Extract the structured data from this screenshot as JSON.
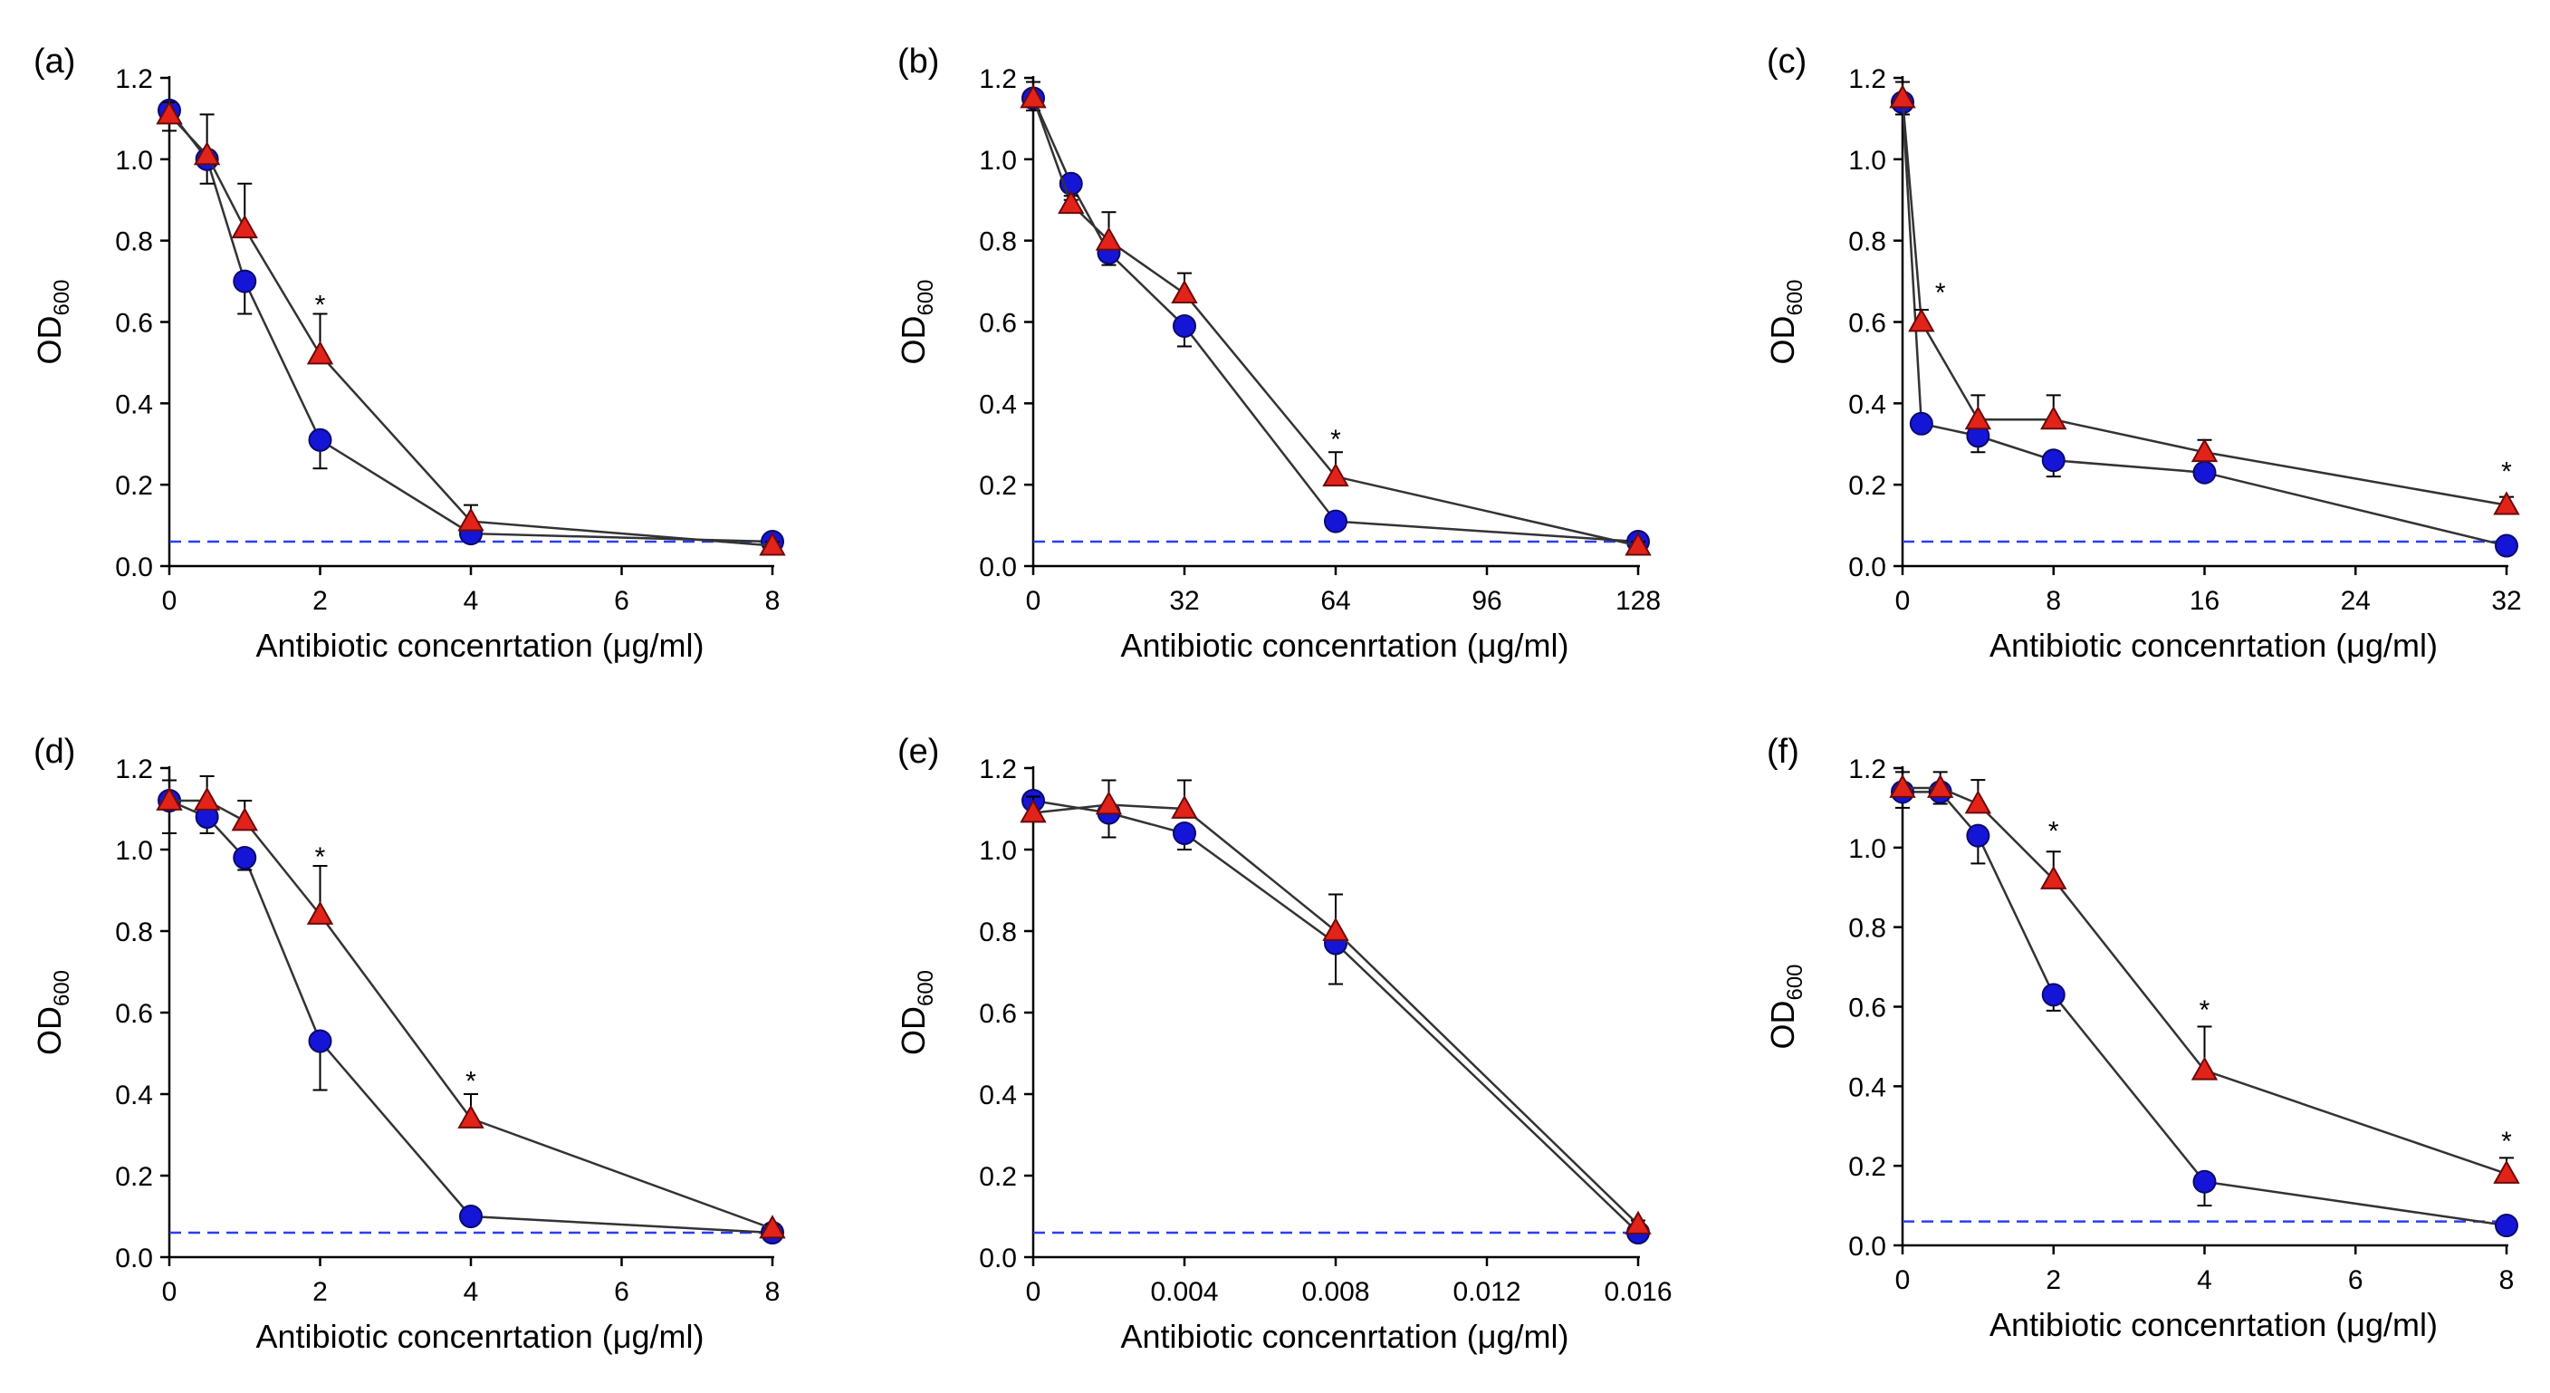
{
  "figure": {
    "type": "multi-panel line chart",
    "series_styles": [
      {
        "marker": "circle",
        "fill": "#1515d8",
        "stroke": "#0a0a6a"
      },
      {
        "marker": "triangle",
        "fill": "#e2231a",
        "stroke": "#6a0a0a"
      }
    ],
    "threshold_color": "#2b3ef0",
    "line_color": "#333333"
  },
  "chart_data": [
    {
      "id": "a",
      "type": "line",
      "panel_label": "(a)",
      "xlabel": "Antibiotic concenrtation (μg/ml)",
      "ylabel": "OD",
      "ylabel_sub": "600",
      "xlim": [
        0,
        8
      ],
      "ylim": [
        0,
        1.2
      ],
      "xticks": [
        0,
        2,
        4,
        6,
        8
      ],
      "xtick_labels": [
        "0",
        "2",
        "4",
        "6",
        "8"
      ],
      "yticks": [
        0,
        0.2,
        0.4,
        0.6,
        0.8,
        1.0,
        1.2
      ],
      "ytick_labels": [
        "0.0",
        "0.2",
        "0.4",
        "0.6",
        "0.8",
        "1.0",
        "1.2"
      ],
      "threshold": 0.06,
      "series": [
        {
          "name": "circle",
          "x": [
            0,
            0.5,
            1,
            2,
            4,
            8
          ],
          "y": [
            1.12,
            1.0,
            0.7,
            0.31,
            0.08,
            0.06
          ],
          "err": [
            0.05,
            0.06,
            0.08,
            0.07,
            0.02,
            0.01
          ]
        },
        {
          "name": "triangle",
          "x": [
            0,
            0.5,
            1,
            2,
            4,
            8
          ],
          "y": [
            1.11,
            1.01,
            0.83,
            0.52,
            0.11,
            0.05
          ],
          "err": [
            0.03,
            0.1,
            0.11,
            0.1,
            0.04,
            0.01
          ]
        }
      ],
      "annotations": [
        {
          "text": "*",
          "x": 2,
          "y": 0.66
        }
      ]
    },
    {
      "id": "b",
      "type": "line",
      "panel_label": "(b)",
      "xlabel": "Antibiotic concenrtation (μg/ml)",
      "ylabel": "OD",
      "ylabel_sub": "600",
      "xlim": [
        0,
        128
      ],
      "ylim": [
        0,
        1.2
      ],
      "xticks": [
        0,
        32,
        64,
        96,
        128
      ],
      "xtick_labels": [
        "0",
        "32",
        "64",
        "96",
        "128"
      ],
      "yticks": [
        0,
        0.2,
        0.4,
        0.6,
        0.8,
        1.0,
        1.2
      ],
      "ytick_labels": [
        "0.0",
        "0.2",
        "0.4",
        "0.6",
        "0.8",
        "1.0",
        "1.2"
      ],
      "threshold": 0.06,
      "series": [
        {
          "name": "circle",
          "x": [
            0,
            8,
            16,
            32,
            64,
            128
          ],
          "y": [
            1.15,
            0.94,
            0.77,
            0.59,
            0.11,
            0.06
          ],
          "err": [
            0.03,
            0.04,
            0.03,
            0.05,
            0.02,
            0.01
          ]
        },
        {
          "name": "triangle",
          "x": [
            0,
            8,
            16,
            32,
            64,
            128
          ],
          "y": [
            1.15,
            0.89,
            0.8,
            0.67,
            0.22,
            0.05
          ],
          "err": [
            0.04,
            0.02,
            0.07,
            0.05,
            0.06,
            0.01
          ]
        }
      ],
      "annotations": [
        {
          "text": "*",
          "x": 64,
          "y": 0.33
        }
      ]
    },
    {
      "id": "c",
      "type": "line",
      "panel_label": "(c)",
      "xlabel": "Antibiotic concenrtation (μg/ml)",
      "ylabel": "OD",
      "ylabel_sub": "600",
      "xlim": [
        0,
        32
      ],
      "ylim": [
        0,
        1.2
      ],
      "xticks": [
        0,
        8,
        16,
        24,
        32
      ],
      "xtick_labels": [
        "0",
        "8",
        "16",
        "24",
        "32"
      ],
      "yticks": [
        0,
        0.2,
        0.4,
        0.6,
        0.8,
        1.0,
        1.2
      ],
      "ytick_labels": [
        "0.0",
        "0.2",
        "0.4",
        "0.6",
        "0.8",
        "1.0",
        "1.2"
      ],
      "threshold": 0.06,
      "series": [
        {
          "name": "circle",
          "x": [
            0,
            1,
            4,
            8,
            16,
            32
          ],
          "y": [
            1.14,
            0.35,
            0.32,
            0.26,
            0.23,
            0.05
          ],
          "err": [
            0.03,
            0.02,
            0.04,
            0.04,
            0.02,
            0.01
          ]
        },
        {
          "name": "triangle",
          "x": [
            0,
            1,
            4,
            8,
            16,
            32
          ],
          "y": [
            1.15,
            0.6,
            0.36,
            0.36,
            0.28,
            0.15
          ],
          "err": [
            0.04,
            0.03,
            0.06,
            0.06,
            0.03,
            0.02
          ]
        }
      ],
      "annotations": [
        {
          "text": "*",
          "x": 2,
          "y": 0.69
        },
        {
          "text": "*",
          "x": 32,
          "y": 0.25
        }
      ]
    },
    {
      "id": "d",
      "type": "line",
      "panel_label": "(d)",
      "xlabel": "Antibiotic concenrtation (μg/ml)",
      "ylabel": "OD",
      "ylabel_sub": "600",
      "xlim": [
        0,
        8
      ],
      "ylim": [
        0,
        1.2
      ],
      "xticks": [
        0,
        2,
        4,
        6,
        8
      ],
      "xtick_labels": [
        "0",
        "2",
        "4",
        "6",
        "8"
      ],
      "yticks": [
        0,
        0.2,
        0.4,
        0.6,
        0.8,
        1.0,
        1.2
      ],
      "ytick_labels": [
        "0.0",
        "0.2",
        "0.4",
        "0.6",
        "0.8",
        "1.0",
        "1.2"
      ],
      "threshold": 0.06,
      "series": [
        {
          "name": "circle",
          "x": [
            0,
            0.5,
            1,
            2,
            4,
            8
          ],
          "y": [
            1.12,
            1.08,
            0.98,
            0.53,
            0.1,
            0.06
          ],
          "err": [
            0.08,
            0.04,
            0.03,
            0.12,
            0.02,
            0.01
          ]
        },
        {
          "name": "triangle",
          "x": [
            0,
            0.5,
            1,
            2,
            4,
            8
          ],
          "y": [
            1.12,
            1.12,
            1.07,
            0.84,
            0.34,
            0.07
          ],
          "err": [
            0.05,
            0.06,
            0.05,
            0.12,
            0.06,
            0.01
          ]
        }
      ],
      "annotations": [
        {
          "text": "*",
          "x": 2,
          "y": 1.0
        },
        {
          "text": "*",
          "x": 4,
          "y": 0.45
        }
      ]
    },
    {
      "id": "e",
      "type": "line",
      "panel_label": "(e)",
      "xlabel": "Antibiotic concenrtation (μg/ml)",
      "ylabel": "OD",
      "ylabel_sub": "600",
      "xlim": [
        0,
        0.016
      ],
      "ylim": [
        0,
        1.2
      ],
      "xticks": [
        0,
        0.004,
        0.008,
        0.012,
        0.016
      ],
      "xtick_labels": [
        "0",
        "0.004",
        "0.008",
        "0.012",
        "0.016"
      ],
      "yticks": [
        0,
        0.2,
        0.4,
        0.6,
        0.8,
        1.0,
        1.2
      ],
      "ytick_labels": [
        "0.0",
        "0.2",
        "0.4",
        "0.6",
        "0.8",
        "1.0",
        "1.2"
      ],
      "threshold": 0.06,
      "series": [
        {
          "name": "circle",
          "x": [
            0,
            0.002,
            0.004,
            0.008,
            0.016
          ],
          "y": [
            1.12,
            1.09,
            1.04,
            0.77,
            0.06
          ],
          "err": [
            0.03,
            0.06,
            0.04,
            0.1,
            0.01
          ]
        },
        {
          "name": "triangle",
          "x": [
            0,
            0.002,
            0.004,
            0.008,
            0.016
          ],
          "y": [
            1.09,
            1.11,
            1.1,
            0.8,
            0.08
          ],
          "err": [
            0.04,
            0.06,
            0.07,
            0.09,
            0.01
          ]
        }
      ],
      "annotations": []
    },
    {
      "id": "f",
      "type": "line",
      "panel_label": "(f)",
      "xlabel": "Antibiotic concenrtation (μg/ml)",
      "ylabel": "OD",
      "ylabel_sub": "600",
      "xlim": [
        0,
        8
      ],
      "ylim": [
        0,
        1.2
      ],
      "xticks": [
        0,
        2,
        4,
        6,
        8
      ],
      "xtick_labels": [
        "0",
        "2",
        "4",
        "6",
        "8"
      ],
      "yticks": [
        0,
        0.2,
        0.4,
        0.6,
        0.8,
        1.0,
        1.2
      ],
      "ytick_labels": [
        "0.0",
        "0.2",
        "0.4",
        "0.6",
        "0.8",
        "1.0",
        "1.2"
      ],
      "threshold": 0.06,
      "series": [
        {
          "name": "circle",
          "x": [
            0,
            0.5,
            1,
            2,
            4,
            8
          ],
          "y": [
            1.14,
            1.14,
            1.03,
            0.63,
            0.16,
            0.05
          ],
          "err": [
            0.04,
            0.03,
            0.07,
            0.04,
            0.06,
            0.01
          ]
        },
        {
          "name": "triangle",
          "x": [
            0,
            0.5,
            1,
            2,
            4,
            8
          ],
          "y": [
            1.15,
            1.15,
            1.11,
            0.92,
            0.44,
            0.18
          ],
          "err": [
            0.04,
            0.04,
            0.06,
            0.07,
            0.11,
            0.04
          ]
        }
      ],
      "annotations": [
        {
          "text": "*",
          "x": 2,
          "y": 1.06
        },
        {
          "text": "*",
          "x": 4,
          "y": 0.61
        },
        {
          "text": "*",
          "x": 8,
          "y": 0.28
        }
      ]
    }
  ]
}
